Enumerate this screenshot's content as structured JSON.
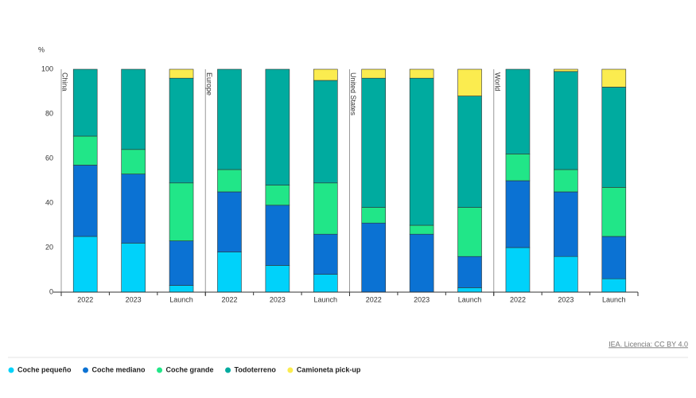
{
  "chart_data": {
    "type": "stacked_bar",
    "y_unit": "%",
    "panels": [
      "China",
      "Europe",
      "United States",
      "World"
    ],
    "categories": [
      "2022",
      "2023",
      "Launch",
      "2022",
      "2023",
      "Launch",
      "2022",
      "2023",
      "Launch",
      "2022",
      "2023",
      "Launch"
    ],
    "series": [
      {
        "name": "Coche pequeño",
        "color": "#00d2fa",
        "values": [
          25,
          22,
          3,
          18,
          12,
          8,
          0,
          0,
          2,
          20,
          16,
          6
        ]
      },
      {
        "name": "Coche mediano",
        "color": "#0b72d3",
        "values": [
          32,
          31,
          20,
          27,
          27,
          18,
          31,
          26,
          14,
          30,
          29,
          19
        ]
      },
      {
        "name": "Coche grande",
        "color": "#21e688",
        "values": [
          13,
          11,
          26,
          10,
          9,
          23,
          7,
          4,
          22,
          12,
          10,
          22
        ]
      },
      {
        "name": "Todoterreno",
        "color": "#00ab9f",
        "values": [
          30,
          36,
          47,
          45,
          52,
          46,
          58,
          66,
          50,
          38,
          44,
          45
        ]
      },
      {
        "name": "Camioneta pick-up",
        "color": "#fbec4f",
        "values": [
          0,
          0,
          4,
          0,
          0,
          5,
          4,
          4,
          12,
          0,
          1,
          8
        ]
      }
    ],
    "ylim": [
      0,
      100
    ],
    "yticks": [
      0,
      20,
      40,
      60,
      80,
      100
    ],
    "source": "IEA. Licencia: CC BY 4.0"
  }
}
